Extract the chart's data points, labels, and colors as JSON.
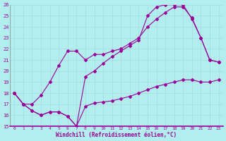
{
  "xlabel": "Windchill (Refroidissement éolien,°C)",
  "xlim": [
    -0.5,
    23.5
  ],
  "ylim": [
    15,
    26
  ],
  "yticks": [
    15,
    16,
    17,
    18,
    19,
    20,
    21,
    22,
    23,
    24,
    25,
    26
  ],
  "xticks": [
    0,
    1,
    2,
    3,
    4,
    5,
    6,
    7,
    8,
    9,
    10,
    11,
    12,
    13,
    14,
    15,
    16,
    17,
    18,
    19,
    20,
    21,
    22,
    23
  ],
  "bg_color": "#b2eeee",
  "grid_color": "#cceeee",
  "line_color": "#990099",
  "line1_x": [
    0,
    1,
    2,
    3,
    4,
    5,
    6,
    7,
    8,
    9,
    10,
    11,
    12,
    13,
    14,
    15,
    16,
    17,
    18,
    19,
    20,
    21,
    22,
    23
  ],
  "line1_y": [
    18.0,
    17.0,
    16.4,
    16.0,
    16.3,
    16.3,
    15.9,
    15.0,
    16.8,
    17.1,
    17.2,
    17.3,
    17.5,
    17.7,
    18.0,
    18.3,
    18.6,
    18.8,
    19.0,
    19.2,
    19.2,
    19.0,
    19.0,
    19.2
  ],
  "line2_x": [
    0,
    1,
    2,
    3,
    4,
    5,
    6,
    7,
    8,
    9,
    10,
    11,
    12,
    13,
    14,
    15,
    16,
    17,
    18,
    19,
    20,
    21,
    22,
    23
  ],
  "line2_y": [
    18.0,
    17.0,
    17.0,
    17.8,
    19.0,
    20.5,
    21.8,
    21.8,
    21.0,
    21.5,
    21.5,
    21.8,
    22.0,
    22.5,
    23.0,
    24.0,
    24.7,
    25.3,
    25.8,
    25.8,
    24.8,
    23.0,
    21.0,
    20.8
  ],
  "line3_x": [
    0,
    1,
    2,
    3,
    4,
    5,
    6,
    7,
    8,
    9,
    10,
    11,
    12,
    13,
    14,
    15,
    16,
    17,
    18,
    19,
    20,
    21,
    22,
    23
  ],
  "line3_y": [
    18.0,
    17.0,
    16.4,
    16.0,
    16.3,
    16.3,
    15.9,
    15.0,
    19.5,
    20.0,
    20.7,
    21.3,
    21.8,
    22.3,
    22.8,
    25.0,
    25.8,
    26.0,
    26.0,
    26.0,
    24.7,
    23.0,
    21.0,
    20.8
  ]
}
